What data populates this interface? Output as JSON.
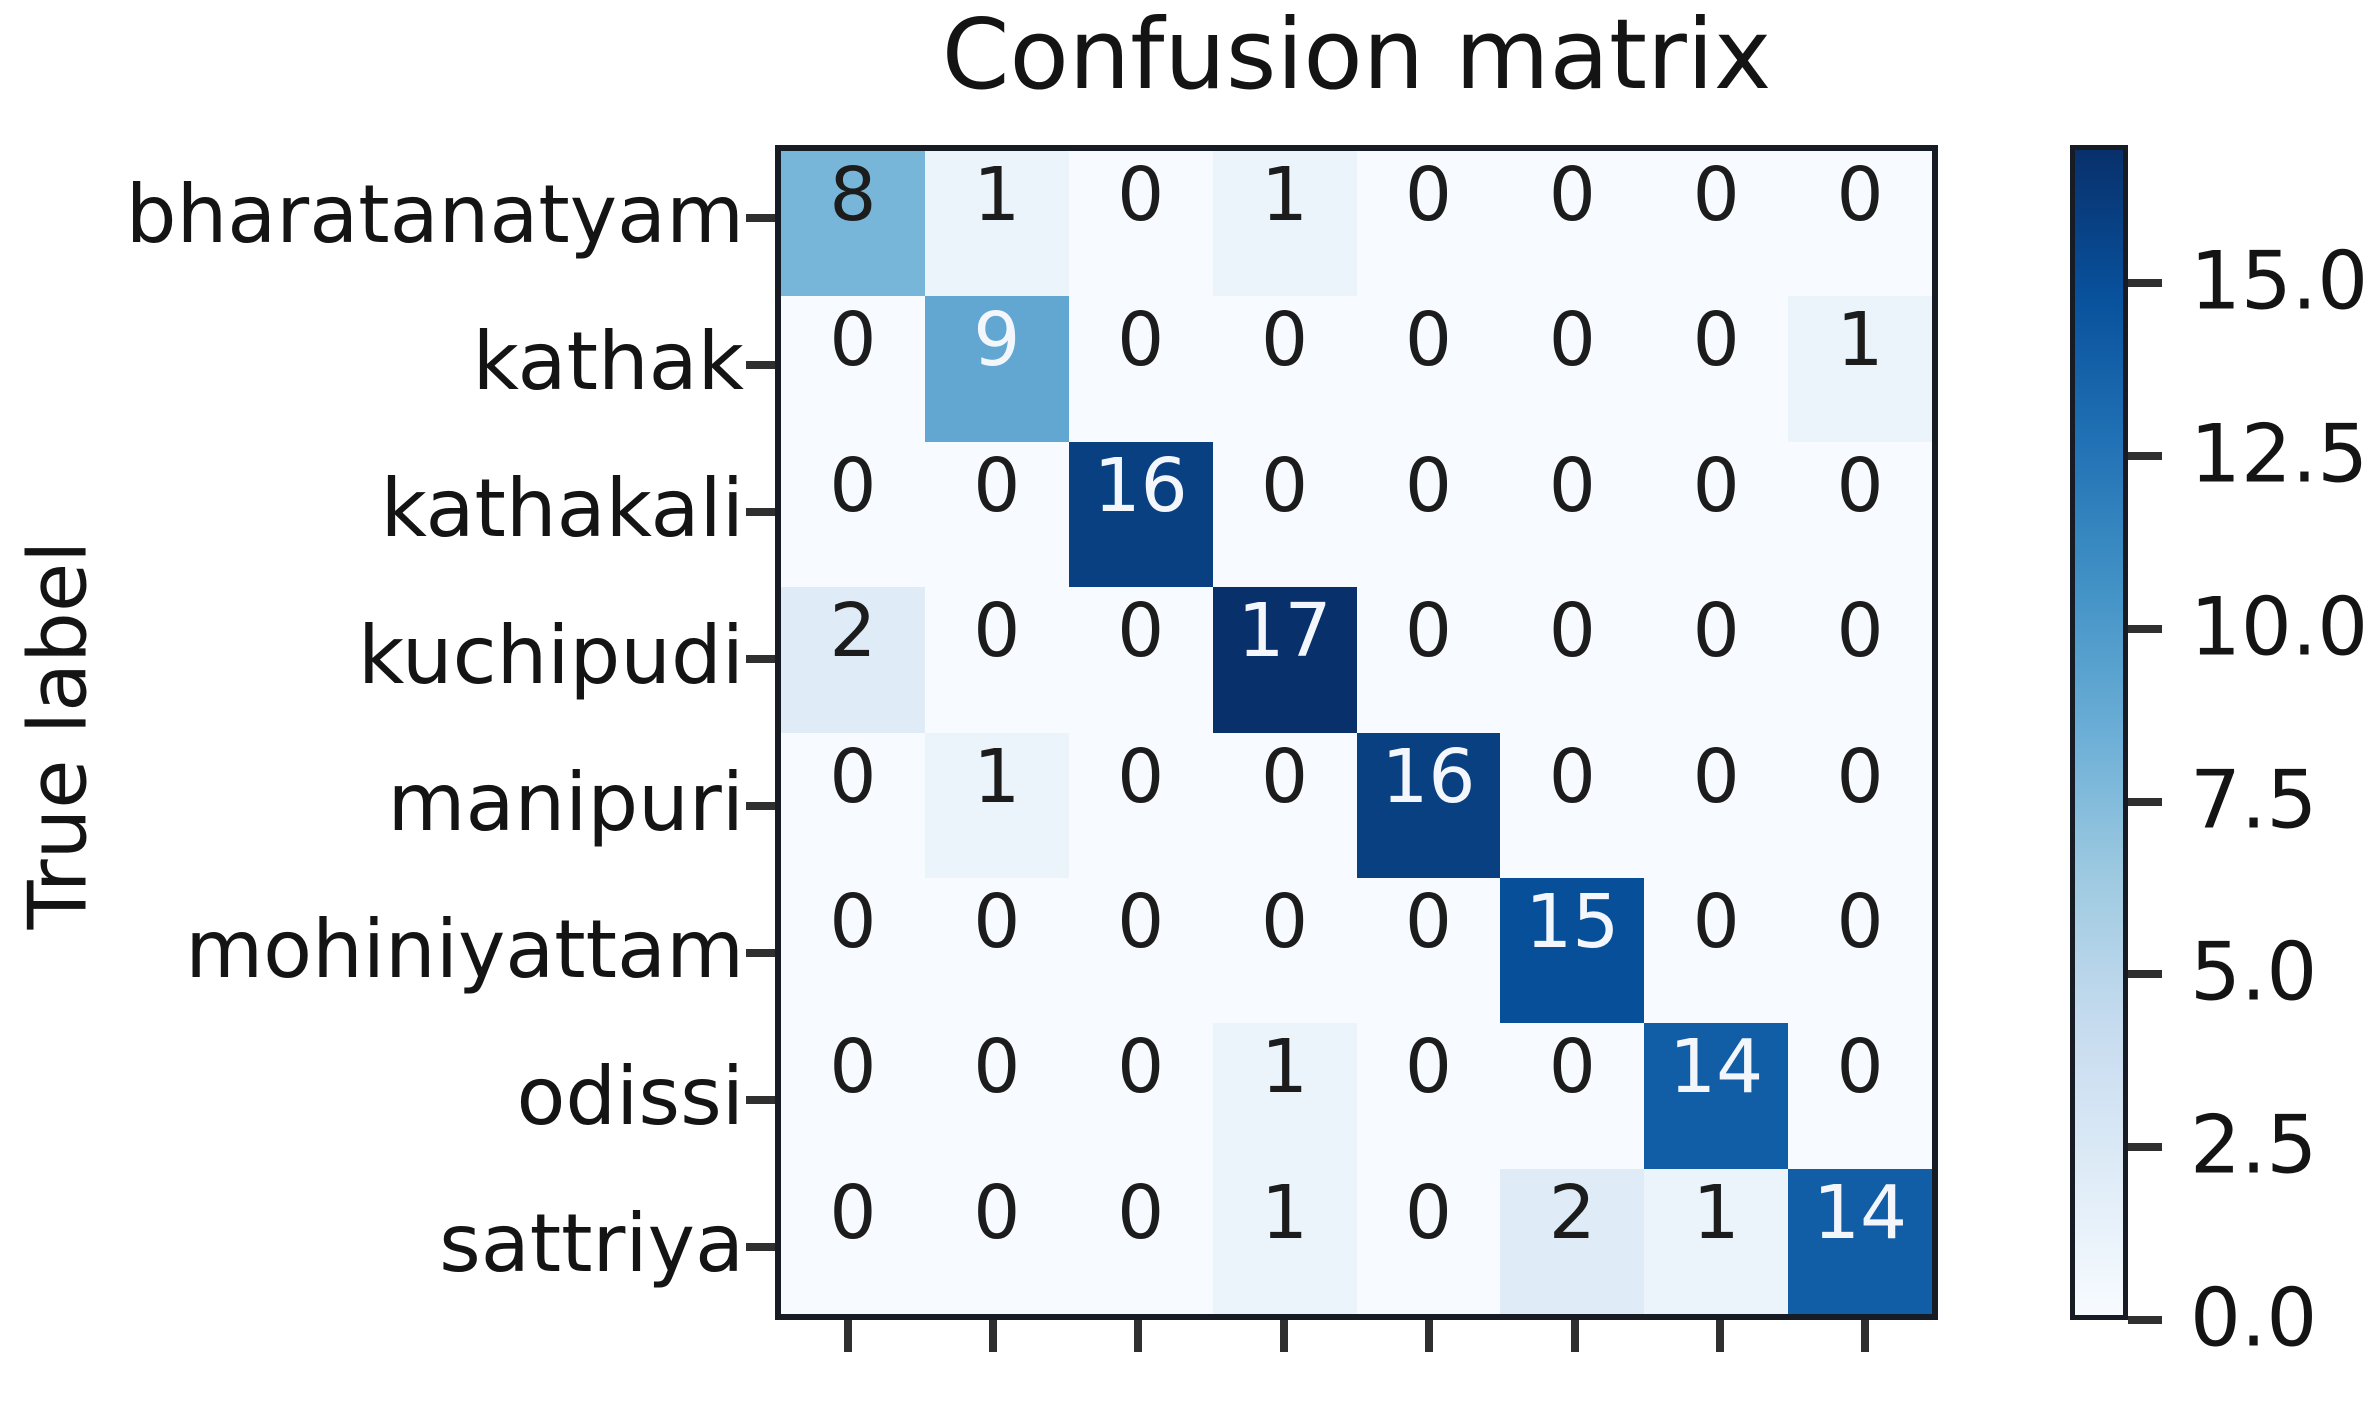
{
  "title": "Confusion matrix",
  "ylabel": "True label",
  "chart_data": {
    "type": "heatmap",
    "title": "Confusion matrix",
    "ylabel": "True label",
    "xlabel": "",
    "row_labels": [
      "bharatanatyam",
      "kathak",
      "kathakali",
      "kuchipudi",
      "manipuri",
      "mohiniyattam",
      "odissi",
      "sattriya"
    ],
    "x_tick_labels_visible": false,
    "x_tick_count": 8,
    "matrix": [
      [
        8,
        1,
        0,
        1,
        0,
        0,
        0,
        0
      ],
      [
        0,
        9,
        0,
        0,
        0,
        0,
        0,
        1
      ],
      [
        0,
        0,
        16,
        0,
        0,
        0,
        0,
        0
      ],
      [
        2,
        0,
        0,
        17,
        0,
        0,
        0,
        0
      ],
      [
        0,
        1,
        0,
        0,
        16,
        0,
        0,
        0
      ],
      [
        0,
        0,
        0,
        0,
        0,
        15,
        0,
        0
      ],
      [
        0,
        0,
        0,
        1,
        0,
        0,
        14,
        0
      ],
      [
        0,
        0,
        0,
        1,
        0,
        2,
        1,
        14
      ]
    ],
    "vmin": 0,
    "vmax": 17,
    "colormap": "Blues",
    "colormap_anchors": [
      "#f7fbff",
      "#deebf7",
      "#c6dbef",
      "#9ecae1",
      "#6baed6",
      "#4292c6",
      "#2171b5",
      "#08519c",
      "#08306b"
    ],
    "cell_text_dark_color": "#1c1c1c",
    "cell_text_light_color": "#f3f7fc",
    "colorbar": {
      "position": "right",
      "tick_labels": [
        "15.0",
        "12.5",
        "10.0",
        "7.5",
        "5.0",
        "2.5",
        "0.0"
      ],
      "tick_values": [
        15,
        12.5,
        10,
        7.5,
        5,
        2.5,
        0
      ]
    },
    "legend": "none",
    "grid": false
  }
}
